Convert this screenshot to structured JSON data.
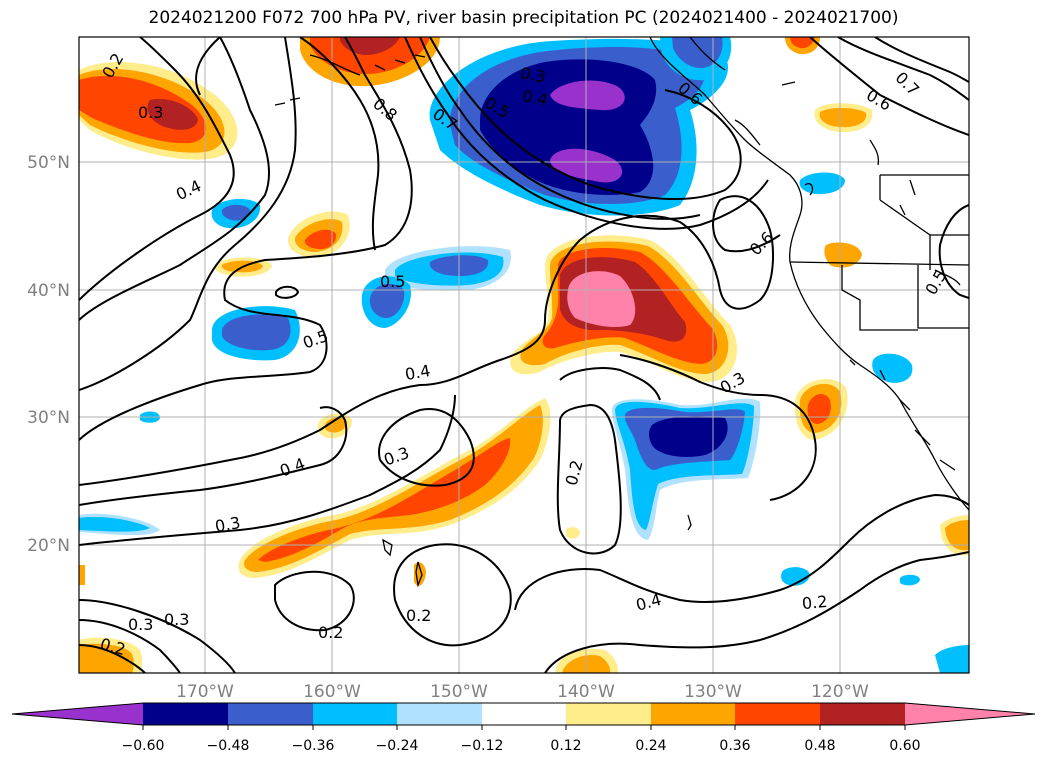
{
  "title": "2024021200 F072 700 hPa PV, river basin precipitation PC (2024021400 - 2024021700)",
  "map": {
    "lat_labels": [
      "50°N",
      "40°N",
      "30°N",
      "20°N"
    ],
    "lon_labels": [
      "170°W",
      "160°W",
      "150°W",
      "140°W",
      "130°W",
      "120°W"
    ],
    "label_color": "#808080",
    "grid_color": "#b0b0b0"
  },
  "pv_contour_labels": [
    {
      "id": "c1",
      "text": "0.2"
    },
    {
      "id": "c2",
      "text": "0.3"
    },
    {
      "id": "c3",
      "text": "0.4"
    },
    {
      "id": "c4",
      "text": "0.8"
    },
    {
      "id": "c5",
      "text": "0.7"
    },
    {
      "id": "c6",
      "text": "0.3"
    },
    {
      "id": "c7",
      "text": "0.4"
    },
    {
      "id": "c8",
      "text": "0.5"
    },
    {
      "id": "c9",
      "text": "0.6"
    },
    {
      "id": "c10",
      "text": "0.7"
    },
    {
      "id": "c11",
      "text": "0.6"
    },
    {
      "id": "c12",
      "text": "0.6"
    },
    {
      "id": "c13",
      "text": "0.5"
    },
    {
      "id": "c14",
      "text": "0.5"
    },
    {
      "id": "c15",
      "text": "0.4"
    },
    {
      "id": "c16",
      "text": "0.4"
    },
    {
      "id": "c17",
      "text": "0.3"
    },
    {
      "id": "c18",
      "text": "0.5"
    },
    {
      "id": "c19",
      "text": "0.3"
    },
    {
      "id": "c20",
      "text": "0.3"
    },
    {
      "id": "c21",
      "text": "0.2"
    },
    {
      "id": "c22",
      "text": "0.4"
    },
    {
      "id": "c23",
      "text": "0.2"
    },
    {
      "id": "c24",
      "text": "0.3"
    },
    {
      "id": "c25",
      "text": "0.3"
    },
    {
      "id": "c26",
      "text": "0.2"
    },
    {
      "id": "c27",
      "text": "0.2"
    },
    {
      "id": "c28",
      "text": "0.2"
    }
  ],
  "colorbar": {
    "ticks": [
      "−0.60",
      "−0.48",
      "−0.36",
      "−0.24",
      "−0.12",
      "0.12",
      "0.24",
      "0.36",
      "0.48",
      "0.60"
    ],
    "colors": {
      "lt_m060": "#9932cc",
      "m060_m048": "#00008b",
      "m048_m036": "#3a5fcd",
      "m036_m024": "#00bfff",
      "m024_m012": "#b0e2ff",
      "m012_012": "#ffffff",
      "p012_024": "#ffec8b",
      "p024_036": "#ffa500",
      "p036_048": "#ff4500",
      "p048_060": "#b22222",
      "gt_060": "#ff82ab"
    }
  }
}
